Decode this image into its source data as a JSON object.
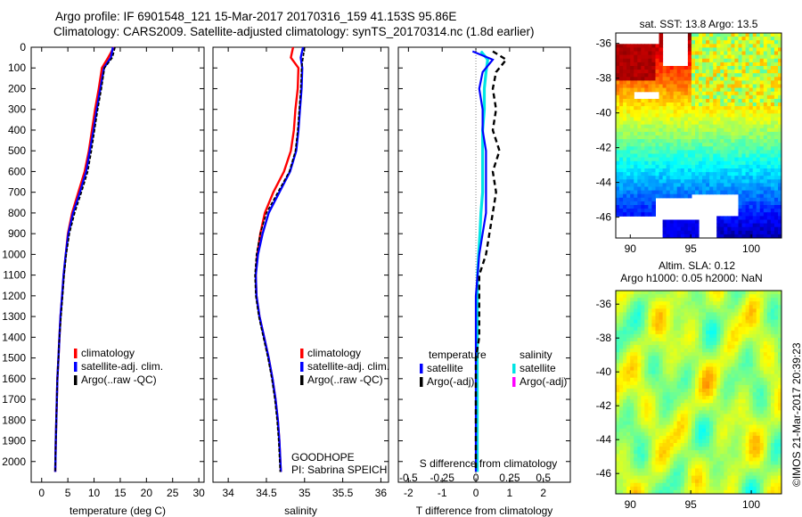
{
  "header": {
    "line1": "Argo profile: IF 6901548_121 15-Mar-2017 20170316_159 41.153S 95.86E",
    "line2": "Climatology: CARS2009. Satellite-adjusted climatology: synTS_20170314.nc (1.8d earlier)"
  },
  "side_label": "©IMOS 21-Mar-2017 20:39:23",
  "colors": {
    "climatology": "#ff0000",
    "satellite": "#0000ff",
    "argo": "#000000",
    "sal_satellite": "#00e5e5",
    "sal_argo": "#ff00ff"
  },
  "chart_data": [
    {
      "type": "line",
      "panel": "temperature",
      "xlabel": "temperature (deg C)",
      "ylabel": "",
      "xlim": [
        -2,
        31
      ],
      "ylim": [
        2100,
        0
      ],
      "xticks": [
        "0",
        "5",
        "10",
        "15",
        "20",
        "25",
        "30"
      ],
      "yticks": [
        "0",
        "100",
        "200",
        "300",
        "400",
        "500",
        "600",
        "700",
        "800",
        "900",
        "1000",
        "1100",
        "1200",
        "1300",
        "1400",
        "1500",
        "1600",
        "1700",
        "1800",
        "1900",
        "2000"
      ],
      "legend": [
        "climatology",
        "satellite-adj. clim.",
        "Argo(..raw -QC)"
      ],
      "series": [
        {
          "name": "climatology",
          "x": [
            13.8,
            12.7,
            11.5,
            10.9,
            10.2,
            9.6,
            9.0,
            8.2,
            7.0,
            5.8,
            5.0,
            4.6,
            4.2,
            3.9,
            3.6,
            3.4,
            3.2,
            3.0,
            2.9,
            2.8,
            2.7,
            2.6
          ],
          "y": [
            0,
            50,
            100,
            200,
            300,
            400,
            500,
            600,
            700,
            800,
            900,
            1000,
            1100,
            1200,
            1300,
            1400,
            1500,
            1600,
            1700,
            1800,
            1900,
            2050
          ]
        },
        {
          "name": "satellite-adj. clim.",
          "x": [
            13.6,
            13.2,
            11.9,
            11.2,
            10.5,
            9.9,
            9.2,
            8.5,
            7.3,
            6.0,
            5.1,
            4.6,
            4.2,
            3.9,
            3.6,
            3.4,
            3.2,
            3.0,
            2.9,
            2.8,
            2.7,
            2.6
          ],
          "y": [
            0,
            50,
            100,
            200,
            300,
            400,
            500,
            600,
            700,
            800,
            900,
            1000,
            1100,
            1200,
            1300,
            1400,
            1500,
            1600,
            1700,
            1800,
            1900,
            2050
          ]
        },
        {
          "name": "Argo(..raw -QC)",
          "x": [
            14.0,
            13.5,
            12.0,
            11.4,
            10.7,
            10.1,
            9.5,
            8.8,
            7.6,
            6.3,
            5.3,
            4.7,
            4.3,
            4.0,
            3.7,
            3.4,
            3.2,
            3.0,
            2.9,
            2.8,
            2.7,
            2.6
          ],
          "y": [
            0,
            50,
            100,
            200,
            300,
            400,
            500,
            600,
            700,
            800,
            900,
            1000,
            1100,
            1200,
            1300,
            1400,
            1500,
            1600,
            1700,
            1800,
            1900,
            2050
          ]
        }
      ]
    },
    {
      "type": "line",
      "panel": "salinity",
      "xlabel": "salinity",
      "xlim": [
        33.8,
        36.1
      ],
      "ylim": [
        2100,
        0
      ],
      "xticks": [
        "34",
        "34.5",
        "35",
        "35.5",
        "36"
      ],
      "legend": [
        "climatology",
        "satellite-adj. clim.",
        "Argo(..raw -QC)"
      ],
      "annotation": [
        "GOODHOPE",
        "PI: Sabrina SPEICH"
      ],
      "series": [
        {
          "name": "climatology",
          "x": [
            34.85,
            34.82,
            34.92,
            34.91,
            34.88,
            34.86,
            34.82,
            34.73,
            34.59,
            34.48,
            34.42,
            34.38,
            34.36,
            34.37,
            34.41,
            34.47,
            34.53,
            34.58,
            34.62,
            34.65,
            34.67,
            34.69
          ],
          "y": [
            0,
            50,
            100,
            200,
            300,
            400,
            500,
            600,
            700,
            800,
            900,
            1000,
            1100,
            1200,
            1300,
            1400,
            1500,
            1600,
            1700,
            1800,
            1900,
            2050
          ]
        },
        {
          "name": "satellite-adj. clim.",
          "x": [
            34.98,
            34.95,
            34.97,
            34.96,
            34.94,
            34.92,
            34.89,
            34.81,
            34.67,
            34.53,
            34.45,
            34.39,
            34.36,
            34.37,
            34.41,
            34.47,
            34.53,
            34.58,
            34.62,
            34.65,
            34.67,
            34.69
          ],
          "y": [
            0,
            50,
            100,
            200,
            300,
            400,
            500,
            600,
            700,
            800,
            900,
            1000,
            1100,
            1200,
            1300,
            1400,
            1500,
            1600,
            1700,
            1800,
            1900,
            2050
          ]
        },
        {
          "name": "Argo(..raw -QC)",
          "x": [
            35.0,
            34.98,
            34.96,
            34.95,
            34.93,
            34.91,
            34.88,
            34.8,
            34.65,
            34.5,
            34.42,
            34.37,
            34.35,
            34.36,
            34.4,
            34.46,
            34.52,
            34.57,
            34.61,
            34.64,
            34.66,
            34.68
          ],
          "y": [
            0,
            50,
            100,
            200,
            300,
            400,
            500,
            600,
            700,
            800,
            900,
            1000,
            1100,
            1200,
            1300,
            1400,
            1500,
            1600,
            1700,
            1800,
            1900,
            2050
          ]
        }
      ]
    },
    {
      "type": "line",
      "panel": "difference",
      "xlabel": "T difference from climatology",
      "xlabel_top": "S difference from climatology",
      "xlim": [
        -2.3,
        2.8
      ],
      "ylim": [
        2100,
        0
      ],
      "xticks": [
        "-2",
        "-1",
        "0",
        "1",
        "2"
      ],
      "xticks_top": [
        "-0.5",
        "-0.25",
        "0",
        "0.25",
        "0.5"
      ],
      "legend_titles": [
        "temperature",
        "salinity"
      ],
      "legend": [
        "satellite",
        "Argo(-adj)",
        "satellite",
        "Argo(-adj)"
      ],
      "series": [
        {
          "name": "temperature satellite",
          "x": [
            -0.1,
            0.5,
            0.2,
            0.1,
            0.2,
            0.2,
            0.3,
            0.3,
            0.3,
            0.3,
            0.2,
            0.1,
            0.05,
            0.0,
            0.0,
            0.0,
            0.0,
            0.0,
            0.0,
            0.0,
            0.0
          ],
          "y": [
            20,
            60,
            120,
            200,
            300,
            400,
            500,
            600,
            700,
            800,
            900,
            1000,
            1100,
            1200,
            1300,
            1400,
            1500,
            1600,
            1700,
            1800,
            2050
          ]
        },
        {
          "name": "temperature Argo(-adj)",
          "x": [
            0.5,
            0.9,
            0.6,
            0.5,
            0.6,
            0.5,
            0.7,
            0.5,
            0.6,
            0.5,
            0.4,
            0.3,
            0.1,
            0.1,
            0.1,
            0.1,
            0.0,
            0.0,
            0.0,
            0.0,
            0.0
          ],
          "y": [
            20,
            60,
            120,
            200,
            300,
            400,
            500,
            600,
            700,
            800,
            900,
            1000,
            1100,
            1200,
            1300,
            1400,
            1500,
            1600,
            1700,
            1800,
            2050
          ]
        },
        {
          "name": "salinity satellite",
          "x": [
            0.15,
            0.35,
            0.3,
            0.25,
            0.25,
            0.2,
            0.2,
            0.2,
            0.2,
            0.15,
            0.12,
            0.08,
            0.05,
            0.04,
            0.04,
            0.04,
            0.04,
            0.04,
            0.04,
            0.04,
            0.04
          ],
          "y": [
            20,
            60,
            120,
            200,
            300,
            400,
            500,
            600,
            700,
            800,
            900,
            1000,
            1100,
            1200,
            1300,
            1400,
            1500,
            1600,
            1700,
            1800,
            2050
          ]
        }
      ]
    },
    {
      "type": "heatmap",
      "panel": "sst_map",
      "title": "sat. SST: 13.8 Argo: 13.5",
      "xlim": [
        88.8,
        102.5
      ],
      "ylim": [
        -47.2,
        -35.4
      ],
      "xticks": [
        "90",
        "95",
        "100"
      ],
      "yticks": [
        "-36",
        "-38",
        "-40",
        "-42",
        "-44",
        "-46"
      ],
      "argo_lon": 95.86,
      "argo_lat": -41.153
    },
    {
      "type": "heatmap",
      "panel": "sla_map",
      "title_lines": [
        "Altim. SLA: 0.12",
        "Argo h1000: 0.05 h2000: NaN"
      ],
      "xlim": [
        88.8,
        102.5
      ],
      "ylim": [
        -47.2,
        -35.2
      ],
      "xticks": [
        "90",
        "95",
        "100"
      ],
      "yticks": [
        "-36",
        "-38",
        "-40",
        "-42",
        "-44",
        "-46"
      ]
    }
  ]
}
